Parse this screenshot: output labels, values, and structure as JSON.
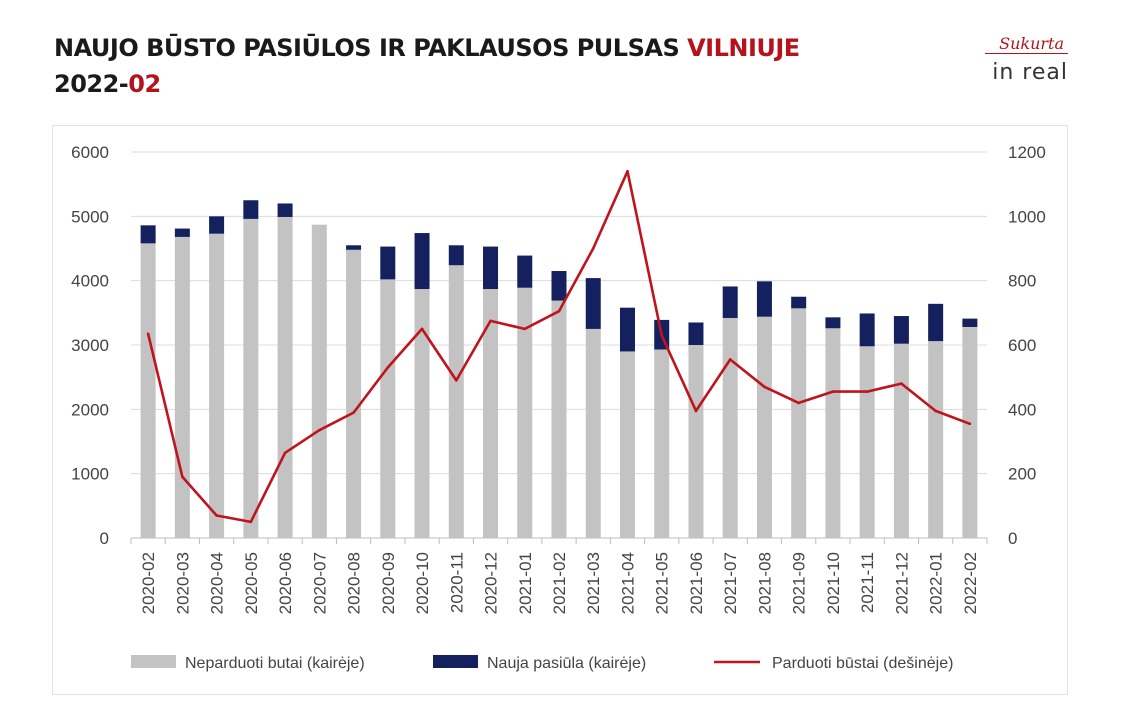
{
  "header": {
    "title_main": "NAUJO BŪSTO PASIŪLOS IR PAKLAUSOS PULSAS ",
    "title_city": "VILNIUJE",
    "date_year": "2022-",
    "date_month": "02"
  },
  "logo": {
    "line1": "Sukurta",
    "line2": "in real"
  },
  "colors": {
    "unsold": "#c3c3c3",
    "new": "#14215e",
    "sold": "#c0141c",
    "accent": "#b5121b"
  },
  "chart_data": {
    "type": "bar",
    "categories": [
      "2020-02",
      "2020-03",
      "2020-04",
      "2020-05",
      "2020-06",
      "2020-07",
      "2020-08",
      "2020-09",
      "2020-10",
      "2020-11",
      "2020-12",
      "2021-01",
      "2021-02",
      "2021-03",
      "2021-04",
      "2021-05",
      "2021-06",
      "2021-07",
      "2021-08",
      "2021-09",
      "2021-10",
      "2021-11",
      "2021-12",
      "2022-01",
      "2022-02"
    ],
    "series": [
      {
        "name": "Neparduoti butai (kairėje)",
        "type": "bar",
        "axis": "left",
        "values": [
          4580,
          4680,
          4730,
          4960,
          4990,
          4870,
          4480,
          4020,
          3870,
          4240,
          3870,
          3890,
          3690,
          3250,
          2900,
          2930,
          3000,
          3420,
          3440,
          3570,
          3260,
          2980,
          3020,
          3060,
          3280
        ]
      },
      {
        "name": "Nauja pasiūla (kairėje)",
        "type": "bar",
        "axis": "left",
        "values": [
          280,
          130,
          270,
          290,
          210,
          0,
          70,
          510,
          870,
          310,
          660,
          500,
          460,
          790,
          680,
          460,
          350,
          490,
          550,
          180,
          170,
          510,
          430,
          580,
          130
        ]
      },
      {
        "name": "Parduoti būstai (dešinėje)",
        "type": "line",
        "axis": "right",
        "values": [
          635,
          190,
          70,
          50,
          265,
          335,
          390,
          530,
          650,
          490,
          675,
          650,
          705,
          900,
          1140,
          630,
          395,
          555,
          470,
          420,
          455,
          455,
          480,
          395,
          355
        ]
      }
    ],
    "yleft": {
      "min": 0,
      "max": 6000,
      "ticks": [
        0,
        1000,
        2000,
        3000,
        4000,
        5000,
        6000
      ]
    },
    "yright": {
      "min": 0,
      "max": 1200,
      "ticks": [
        0,
        200,
        400,
        600,
        800,
        1000,
        1200
      ]
    },
    "legend_position": "bottom"
  }
}
